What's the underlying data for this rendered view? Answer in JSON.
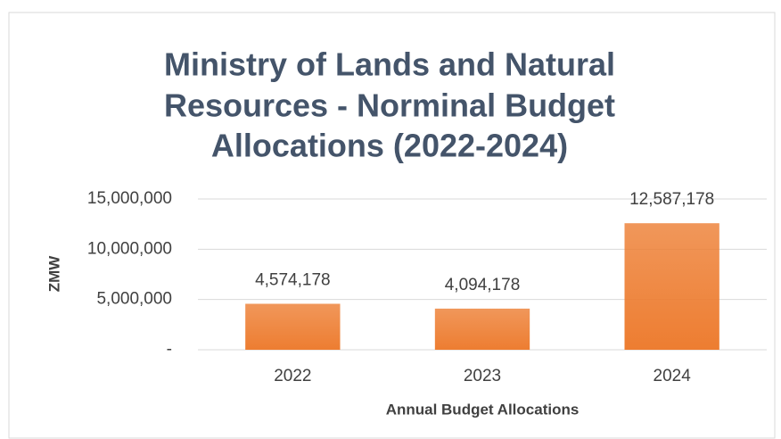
{
  "chart_data": {
    "type": "bar",
    "title": [
      "Ministry of Lands and Natural",
      "Resources - Norminal Budget",
      "Allocations (2022-2024)"
    ],
    "x_label": "Annual Budget Allocations",
    "y_label": "ZMW",
    "categories": [
      "2022",
      "2023",
      "2024"
    ],
    "values": [
      4574178,
      4094178,
      12587178
    ],
    "value_labels": [
      "4,574,178",
      "4,094,178",
      "12,587,178"
    ],
    "color": "#ed7d31",
    "ylim": [
      0,
      15000000
    ],
    "yticks": [
      {
        "value": 0,
        "label": "-"
      },
      {
        "value": 5000000,
        "label": "5,000,000"
      },
      {
        "value": 10000000,
        "label": "10,000,000"
      },
      {
        "value": 15000000,
        "label": "15,000,000"
      }
    ],
    "grid": true
  }
}
